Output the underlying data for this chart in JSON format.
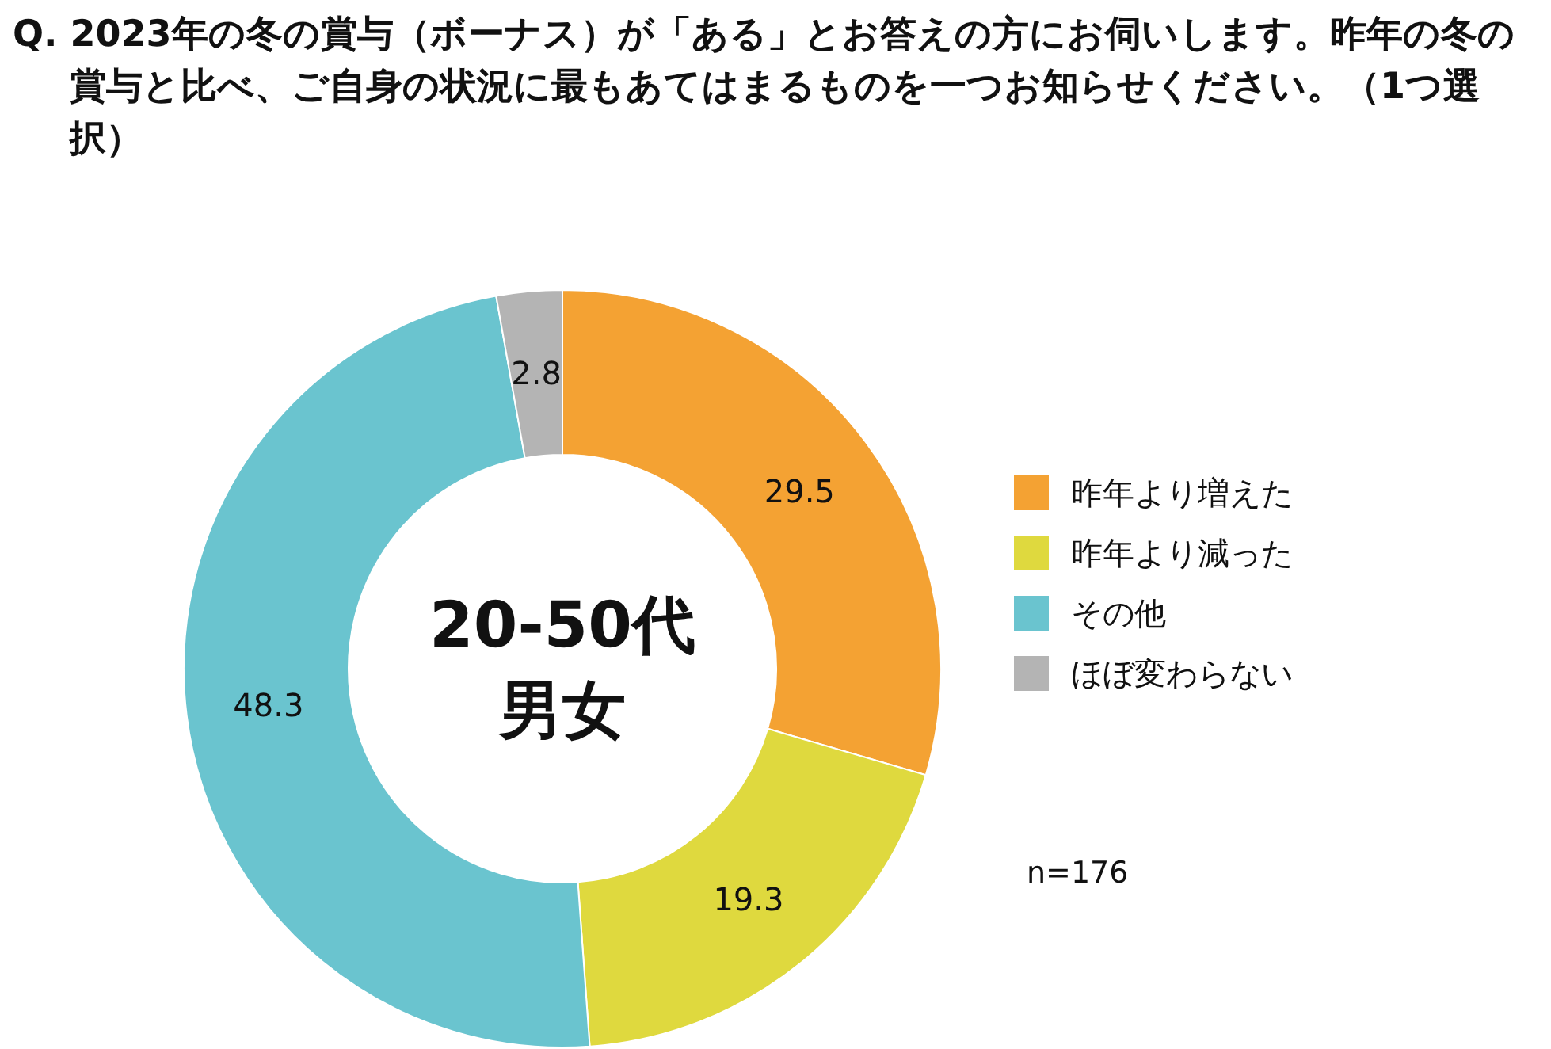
{
  "chart_data": {
    "type": "donut",
    "title": "Q. 2023年の冬の賞与（ボーナス）が「ある」とお答えの方にお伺いします。昨年の冬の賞与と比べ、ご自身の状況に最もあてはまるものを一つお知らせください。（1つ選択）",
    "categories": [
      "昨年より増えた",
      "昨年より減った",
      "その他",
      "ほぼ変わらない"
    ],
    "values": [
      29.5,
      19.3,
      48.3,
      2.8
    ],
    "colors": [
      "#f4a233",
      "#dfd93e",
      "#6ac4cf",
      "#b4b4b4"
    ],
    "data_labels": true,
    "legend": "right",
    "annotations": [
      "20-50代",
      "男女",
      "n=176"
    ]
  }
}
